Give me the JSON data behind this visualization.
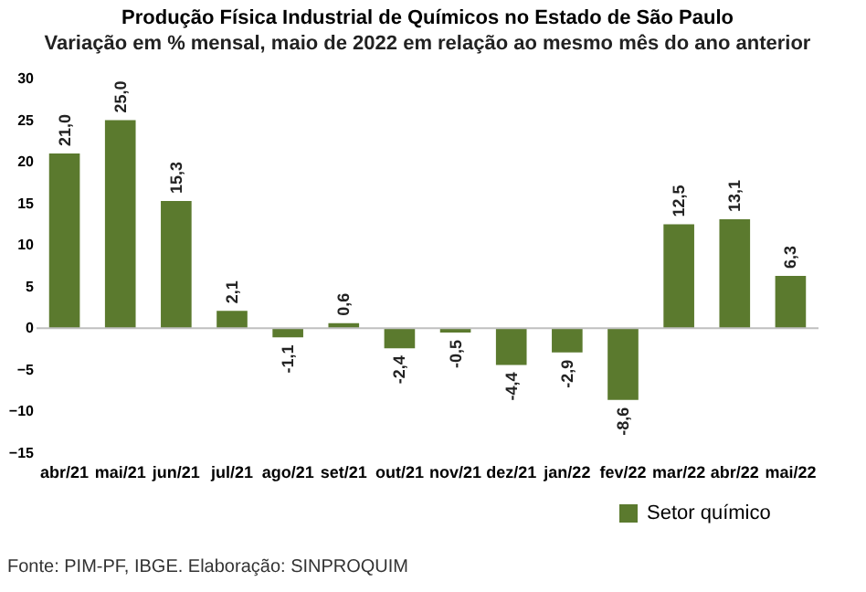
{
  "chart_data": {
    "type": "bar",
    "title": "Produção Física Industrial de Químicos no Estado de São Paulo",
    "subtitle": "Variação em % mensal, maio de 2022 em relação ao mesmo mês do ano anterior",
    "categories": [
      "abr/21",
      "mai/21",
      "jun/21",
      "jul/21",
      "ago/21",
      "set/21",
      "out/21",
      "nov/21",
      "dez/21",
      "jan/22",
      "fev/22",
      "mar/22",
      "abr/22",
      "mai/22"
    ],
    "series": [
      {
        "name": "Setor químico",
        "color": "#5b7a2e",
        "values": [
          21.0,
          25.0,
          15.3,
          2.1,
          -1.1,
          0.6,
          -2.4,
          -0.5,
          -4.4,
          -2.9,
          -8.6,
          12.5,
          13.1,
          6.3
        ],
        "value_labels": [
          "21,0",
          "25,0",
          "15,3",
          "2,1",
          "-1,1",
          "0,6",
          "-2,4",
          "-0,5",
          "-4,4",
          "-2,9",
          "-8,6",
          "12,5",
          "13,1",
          "6,3"
        ]
      }
    ],
    "ylim": [
      -15,
      30
    ],
    "yticks": [
      -15,
      -10,
      -5,
      0,
      5,
      10,
      15,
      20,
      25,
      30
    ],
    "grid": false,
    "legend": "bottom right",
    "ref_lines": [
      {
        "axis": "y",
        "value": 0,
        "color": "#bfbfbf"
      }
    ],
    "annotations": [
      "Fonte: PIM-PF, IBGE. Elaboração: SINPROQUIM"
    ]
  }
}
